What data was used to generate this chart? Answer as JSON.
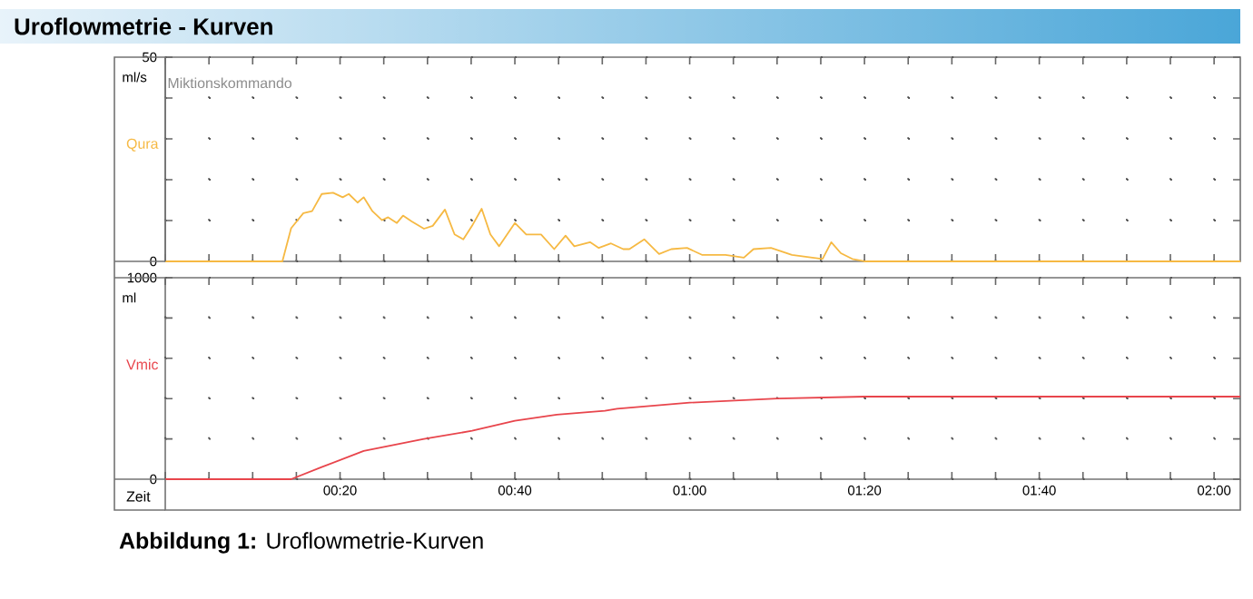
{
  "chart_data": [
    {
      "type": "line",
      "title": "Uroflowmetrie - Kurven",
      "ylabel": "ml/s",
      "series": [
        {
          "name": "Qura",
          "color": "#f6b943",
          "x": [
            0,
            13.4,
            14.4,
            15.8,
            16.8,
            17.9,
            19.2,
            20.3,
            21.0,
            22.0,
            22.7,
            23.7,
            24.8,
            25.5,
            26.5,
            27.2,
            28.2,
            29.6,
            30.6,
            32.0,
            33.1,
            34.1,
            35.1,
            36.2,
            37.2,
            38.2,
            40.0,
            41.3,
            43.0,
            44.5,
            45.8,
            46.8,
            48.6,
            49.6,
            51.0,
            52.4,
            53.1,
            54.8,
            56.5,
            57.9,
            59.7,
            61.4,
            64.1,
            66.2,
            67.3,
            69.3,
            71.7,
            75.2,
            76.2,
            77.3,
            78.6,
            80.0,
            123
          ],
          "values": [
            0,
            0,
            8.1,
            11.8,
            12.3,
            16.5,
            16.8,
            15.7,
            16.5,
            14.4,
            15.7,
            12.3,
            10.1,
            10.8,
            9.4,
            11.2,
            9.8,
            8.0,
            8.7,
            12.7,
            6.6,
            5.4,
            8.7,
            12.9,
            6.6,
            3.7,
            9.4,
            6.6,
            6.6,
            3.0,
            6.3,
            3.7,
            4.7,
            3.3,
            4.4,
            3.0,
            3.0,
            5.4,
            1.8,
            3.0,
            3.3,
            1.6,
            1.6,
            0.9,
            3.0,
            3.3,
            1.6,
            0.6,
            4.7,
            2.0,
            0.6,
            0,
            0
          ]
        }
      ],
      "xlim": [
        0,
        123
      ],
      "ylim": [
        0,
        50
      ],
      "xticks": [
        {
          "value": 0,
          "label": null
        },
        {
          "value": 5,
          "label": null
        },
        {
          "value": 10,
          "label": null
        },
        {
          "value": 15,
          "label": null
        },
        {
          "value": 20,
          "label": null
        },
        {
          "value": 25,
          "label": null
        },
        {
          "value": 30,
          "label": null
        },
        {
          "value": 35,
          "label": null
        },
        {
          "value": 40,
          "label": null
        },
        {
          "value": 45,
          "label": null
        },
        {
          "value": 50,
          "label": null
        },
        {
          "value": 55,
          "label": null
        },
        {
          "value": 60,
          "label": null
        },
        {
          "value": 65,
          "label": null
        },
        {
          "value": 70,
          "label": null
        },
        {
          "value": 75,
          "label": null
        },
        {
          "value": 80,
          "label": null
        },
        {
          "value": 85,
          "label": null
        },
        {
          "value": 90,
          "label": null
        },
        {
          "value": 95,
          "label": null
        },
        {
          "value": 100,
          "label": null
        },
        {
          "value": 105,
          "label": null
        },
        {
          "value": 110,
          "label": null
        },
        {
          "value": 115,
          "label": null
        },
        {
          "value": 120,
          "label": null
        }
      ],
      "yticks": [
        0,
        {
          "value": 10,
          "label": null
        },
        {
          "value": 20,
          "label": null
        },
        {
          "value": 30,
          "label": null
        },
        {
          "value": 40,
          "label": null
        },
        50
      ],
      "grid": true,
      "tick_labels": "y",
      "ref_lines": [
        {
          "axis": "x",
          "value": 0,
          "label": "Miktionskommando"
        }
      ]
    },
    {
      "type": "line",
      "ylabel": "ml",
      "xlabel": "Zeit",
      "series": [
        {
          "name": "Vmic",
          "color": "#e8454c",
          "x": [
            0,
            14.4,
            17.9,
            22.7,
            29.6,
            35.1,
            40.0,
            44.8,
            50.3,
            51.7,
            60.0,
            70.0,
            80.0,
            123
          ],
          "values": [
            0,
            0,
            60,
            140,
            200,
            240,
            290,
            320,
            340,
            350,
            380,
            400,
            410,
            410
          ]
        }
      ],
      "xlim": [
        0,
        123
      ],
      "ylim": [
        0,
        1000
      ],
      "xticks": [
        {
          "value": 0,
          "label": null
        },
        {
          "value": 5,
          "label": null
        },
        {
          "value": 10,
          "label": null
        },
        {
          "value": 15,
          "label": null
        },
        {
          "value": 20,
          "label": "00:20"
        },
        {
          "value": 25,
          "label": null
        },
        {
          "value": 30,
          "label": null
        },
        {
          "value": 35,
          "label": null
        },
        {
          "value": 40,
          "label": "00:40"
        },
        {
          "value": 45,
          "label": null
        },
        {
          "value": 50,
          "label": null
        },
        {
          "value": 55,
          "label": null
        },
        {
          "value": 60,
          "label": "01:00"
        },
        {
          "value": 65,
          "label": null
        },
        {
          "value": 70,
          "label": null
        },
        {
          "value": 75,
          "label": null
        },
        {
          "value": 80,
          "label": "01:20"
        },
        {
          "value": 85,
          "label": null
        },
        {
          "value": 90,
          "label": null
        },
        {
          "value": 95,
          "label": null
        },
        {
          "value": 100,
          "label": "01:40"
        },
        {
          "value": 105,
          "label": null
        },
        {
          "value": 110,
          "label": null
        },
        {
          "value": 115,
          "label": null
        },
        {
          "value": 120,
          "label": "02:00"
        }
      ],
      "yticks": [
        0,
        {
          "value": 200,
          "label": null
        },
        {
          "value": 400,
          "label": null
        },
        {
          "value": 600,
          "label": null
        },
        {
          "value": 800,
          "label": null
        },
        1000
      ],
      "grid": true,
      "annotations": [
        "**Abbildung 1:** Uroflowmetrie-Kurven"
      ]
    }
  ]
}
